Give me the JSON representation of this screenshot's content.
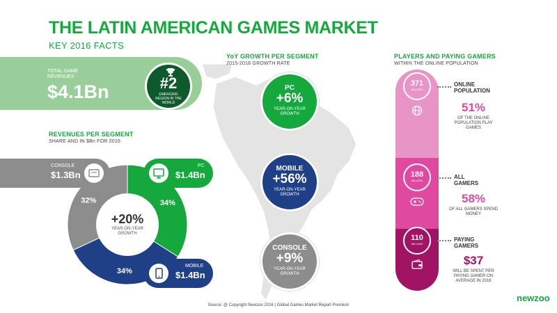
{
  "title": "THE LATIN AMERICAN GAMES MARKET",
  "subtitle": "KEY 2016 FACTS",
  "total_revenue": {
    "label": "TOTAL GAME REVENUES",
    "value": "$4.1Bn"
  },
  "rank": {
    "value": "#2",
    "label": "EMERGING REGION IN THE WORLD"
  },
  "revenues_per_segment": {
    "heading": "REVENUES PER SEGMENT",
    "subheading": "SHARE AND IN $Bn FOR 2016",
    "center_value": "+20%",
    "center_label": "YEAR-ON-YEAR GROWTH"
  },
  "yoy_growth": {
    "heading": "YoY GROWTH PER SEGMENT",
    "subheading": "2015-2016 GROWTH RATE"
  },
  "chart_data": [
    {
      "type": "pie",
      "categories": [
        "PC",
        "MOBILE",
        "CONSOLE"
      ],
      "values": [
        34,
        34,
        32
      ],
      "value_labels": [
        "34%",
        "34%",
        "32%"
      ],
      "segment_revenue": [
        "$1.4Bn",
        "$1.4Bn",
        "$1.3Bn"
      ],
      "colors": [
        "#15a83d",
        "#1f3f86",
        "#8c8c8c"
      ]
    },
    {
      "type": "table",
      "categories": [
        "PC",
        "MOBILE",
        "CONSOLE"
      ],
      "values": [
        "+6%",
        "+56%",
        "+9%"
      ],
      "label": "YEAR-ON-YEAR GROWTH",
      "colors": [
        "#15a83d",
        "#1f3f86",
        "#8c8c8c"
      ]
    }
  ],
  "players": {
    "heading": "PLAYERS AND PAYING GAMERS",
    "subheading": "WITHIN THE ONLINE POPULATION",
    "tiers": [
      {
        "number": "371",
        "unit": "MILLION",
        "label": "ONLINE POPULATION",
        "pct": "51%",
        "desc": "OF THE ONLINE POPULATION PLAY GAMES"
      },
      {
        "number": "188",
        "unit": "MILLION",
        "label": "ALL GAMERS",
        "pct": "58%",
        "desc": "OF ALL GAMERS SPEND MONEY"
      },
      {
        "number": "110",
        "unit": "MILLION",
        "label": "PAYING GAMERS",
        "pct": "$37",
        "desc": "WILL BE SPENT PER PAYING GAMER ON AVERAGE IN 2016"
      }
    ],
    "colors": [
      "#e894c6",
      "#df4aa0",
      "#a11463"
    ]
  },
  "source": "Source: @ Copyright Newzoo 2016 | Global Games Market Report Premium",
  "logo": "newzoo"
}
